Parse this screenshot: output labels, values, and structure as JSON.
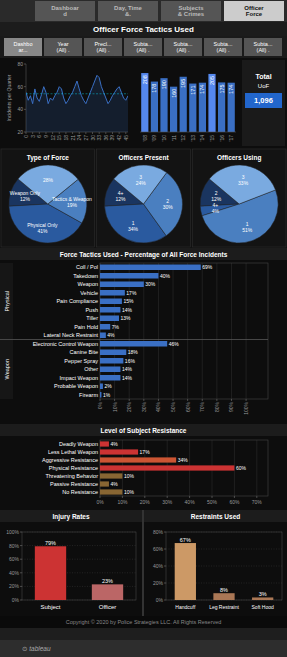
{
  "page": {
    "tabs": [
      "Dashboar\nd",
      "Day, Time\n&.",
      "Subjects\n& Crimes",
      "Officer\nForce"
    ],
    "active_tab": 3,
    "title": "Officer Force Tactics Used",
    "filters": [
      "Dashbo\nar...",
      "Year\n(All) .",
      "Precl...\n(All) .",
      "Subta...\n(All) .",
      "Subta...\n(All) .",
      "Subta...\n(All) .",
      "Subta...\n(All) ."
    ],
    "copyright": "Copyright © 2020 by Police Strategies LLC. All Rights Reserved",
    "footer": "⊙ tableau"
  },
  "chart_data": [
    {
      "type": "line",
      "ylabel": "Incidents per Quarter",
      "x": [
        0,
        1,
        2,
        3,
        4,
        5,
        6,
        7,
        8,
        9,
        10,
        11,
        12,
        13,
        14,
        15,
        16,
        17,
        18,
        19,
        20,
        21,
        22,
        23,
        24,
        25,
        26,
        27,
        28,
        29,
        30,
        31,
        32,
        33,
        34,
        35,
        36,
        37,
        38,
        39,
        40,
        41,
        42,
        43,
        44,
        45,
        46
      ],
      "values": [
        55,
        48,
        52,
        45,
        58,
        50,
        47,
        53,
        60,
        55,
        45,
        50,
        48,
        52,
        55,
        60,
        58,
        50,
        45,
        48,
        52,
        55,
        60,
        65,
        58,
        52,
        48,
        45,
        50,
        55,
        60,
        65,
        70,
        68,
        60,
        55,
        50,
        45,
        48,
        52,
        55,
        58,
        60,
        55,
        50,
        48,
        52
      ],
      "color": "#3a6fc4",
      "mean": 53.72340425531915,
      "xlim": [
        0,
        46
      ],
      "xticks": [
        0,
        3,
        6,
        9,
        12,
        15,
        18,
        21,
        24,
        27,
        30,
        33,
        36,
        39,
        42,
        45
      ],
      "ylim": [
        20,
        80
      ],
      "yticks": [
        20,
        40,
        60,
        80
      ]
    },
    {
      "type": "bar",
      "categories": [
        "'08",
        "'09",
        "'10",
        "'11",
        "'12",
        "'13",
        "'14",
        "'15",
        "'16",
        "'17"
      ],
      "values": [
        208,
        178,
        190,
        160,
        195,
        171,
        174,
        205,
        175,
        174
      ],
      "colors": [
        "#5588ee",
        "#3a6fc4",
        "#3a6fc4",
        "#3a6fc4",
        "#3a6fc4",
        "#3a6fc4",
        "#3a6fc4",
        "#5588ee",
        "#3a6fc4",
        "#3a6fc4"
      ],
      "ylim": [
        0,
        240
      ],
      "tick_labels": "x",
      "data_labels": true
    },
    {
      "type": "kpi",
      "title": "Total",
      "subtitle": "UoF",
      "values": [
        1096
      ],
      "value_labels": [
        "1,096"
      ]
    },
    {
      "type": "pie",
      "title": "Type of Force",
      "categories": [
        "Weapon Only",
        "Physical Only",
        "Tactics & Weapon",
        null
      ],
      "values": [
        12,
        41,
        19,
        28
      ],
      "value_labels": [
        "12%",
        "41%",
        "19%",
        "28%"
      ],
      "colors": [
        "#1a3560",
        "#2a5a9f",
        "#4a7fc0",
        "#7aaae0"
      ],
      "data_labels": true
    },
    {
      "type": "pie",
      "title": "Officers Present",
      "categories": [
        "4+",
        "1",
        "2",
        "3"
      ],
      "values": [
        12,
        34,
        30,
        24
      ],
      "value_labels": [
        "12%",
        "34%",
        "30%",
        "24%"
      ],
      "colors": [
        "#1a3560",
        "#2a5a9f",
        "#4a7fc0",
        "#7aaae0"
      ],
      "data_labels": true
    },
    {
      "type": "pie",
      "title": "Officers Using",
      "categories": [
        "2",
        "4+",
        "1",
        "3"
      ],
      "values": [
        12,
        4,
        51,
        33
      ],
      "value_labels": [
        "12%",
        "4%",
        "51%",
        "33%"
      ],
      "colors": [
        "#1a3560",
        "#2a5a9f",
        "#4a7fc0",
        "#7aaae0"
      ],
      "data_labels": true
    },
    {
      "type": "bar",
      "orientation": "horizontal",
      "title": "Force Tactics Used - Percentage of All Force Incidents",
      "categories": [
        "Coll / Pol",
        "Takedown",
        "Weapon",
        "Vehicle",
        "Pain Compliance",
        "Push",
        "Tiller",
        "Pain Hold",
        "Lateral Neck Restraint",
        "Electronic Control Weapon",
        "Canine Bite",
        "Pepper Spray",
        "Other",
        "Impact Weapon",
        "Probable Weapon",
        "Firearm"
      ],
      "values": [
        69,
        40,
        30,
        17,
        15,
        14,
        13,
        7,
        4,
        46,
        18,
        16,
        14,
        14,
        2,
        1
      ],
      "value_labels": [
        "69%",
        "40%",
        "30%",
        "17%",
        "15%",
        "14%",
        "13%",
        "7%",
        "4%",
        "46%",
        "18%",
        "16%",
        "14%",
        "14%",
        "2%",
        "1%"
      ],
      "sections": [
        {
          "name": "Physical",
          "count": 9
        },
        {
          "name": "Weapon",
          "count": 7
        }
      ],
      "color": "#3a6fc4",
      "xlim": [
        0,
        115
      ],
      "xticks": [
        {
          "value": 0,
          "label": "0%"
        },
        {
          "value": 10,
          "label": "10%"
        },
        {
          "value": 20,
          "label": "20%"
        },
        {
          "value": 30,
          "label": "30%"
        },
        {
          "value": 40,
          "label": "40%"
        },
        {
          "value": 50,
          "label": "50%"
        },
        {
          "value": 60,
          "label": "60%"
        },
        {
          "value": 70,
          "label": "70%"
        },
        {
          "value": 80,
          "label": "80%"
        },
        {
          "value": 90,
          "label": "90%"
        },
        {
          "value": 100,
          "label": "100%"
        }
      ],
      "grid": true,
      "data_labels": true
    },
    {
      "type": "bar",
      "orientation": "horizontal",
      "title": "Level of Subject Resistance",
      "categories": [
        "Deadly Weapon",
        "Less Lethal Weapon",
        "Aggressive Resistance",
        "Physical Resistance",
        "Threatening Behavior",
        "Passive Resistance",
        "No Resistance"
      ],
      "values": [
        4,
        17,
        34,
        60,
        10,
        4,
        10
      ],
      "value_labels": [
        "4%",
        "17%",
        "34%",
        "60%",
        "10%",
        "4%",
        "10%"
      ],
      "colors": [
        "#cc3333",
        "#cc3333",
        "#cc5533",
        "#cc3333",
        "#886633",
        "#886633",
        "#886633"
      ],
      "xlim": [
        0,
        75
      ],
      "xticks": [
        {
          "value": 0,
          "label": "0%"
        },
        {
          "value": 10,
          "label": "10%"
        },
        {
          "value": 20,
          "label": "20%"
        },
        {
          "value": 30,
          "label": "30%"
        },
        {
          "value": 40,
          "label": "40%"
        },
        {
          "value": 50,
          "label": "50%"
        },
        {
          "value": 60,
          "label": "60%"
        },
        {
          "value": 70,
          "label": "70%"
        }
      ],
      "grid": true,
      "data_labels": true
    },
    {
      "type": "bar",
      "title": "Injury Rates",
      "categories": [
        "Subject",
        "Officer"
      ],
      "values": [
        79,
        23
      ],
      "value_labels": [
        "79%",
        "23%"
      ],
      "colors": [
        "#cc3333",
        "#bb6666"
      ],
      "ylim": [
        0,
        100
      ],
      "yticks": [
        {
          "value": 0,
          "label": "0%"
        },
        {
          "value": 20,
          "label": "20%"
        },
        {
          "value": 40,
          "label": "40%"
        },
        {
          "value": 60,
          "label": "60%"
        },
        {
          "value": 80,
          "label": "80%"
        },
        {
          "value": 100,
          "label": "100%"
        }
      ],
      "grid": true,
      "data_labels": true
    },
    {
      "type": "bar",
      "title": "Restraints Used",
      "categories": [
        "Handcuff",
        "Leg Restraint",
        "Soft Hood"
      ],
      "values": [
        67,
        8,
        3
      ],
      "value_labels": [
        "67%",
        "8%",
        "3%"
      ],
      "colors": [
        "#cc9966",
        "#aa7755",
        "#aa7755"
      ],
      "ylim": [
        0,
        80
      ],
      "yticks": [
        {
          "value": 0,
          "label": "0%"
        },
        {
          "value": 20,
          "label": "20%"
        },
        {
          "value": 40,
          "label": "40%"
        },
        {
          "value": 60,
          "label": "60%"
        },
        {
          "value": 80,
          "label": "80%"
        }
      ],
      "grid": true,
      "data_labels": true
    }
  ]
}
